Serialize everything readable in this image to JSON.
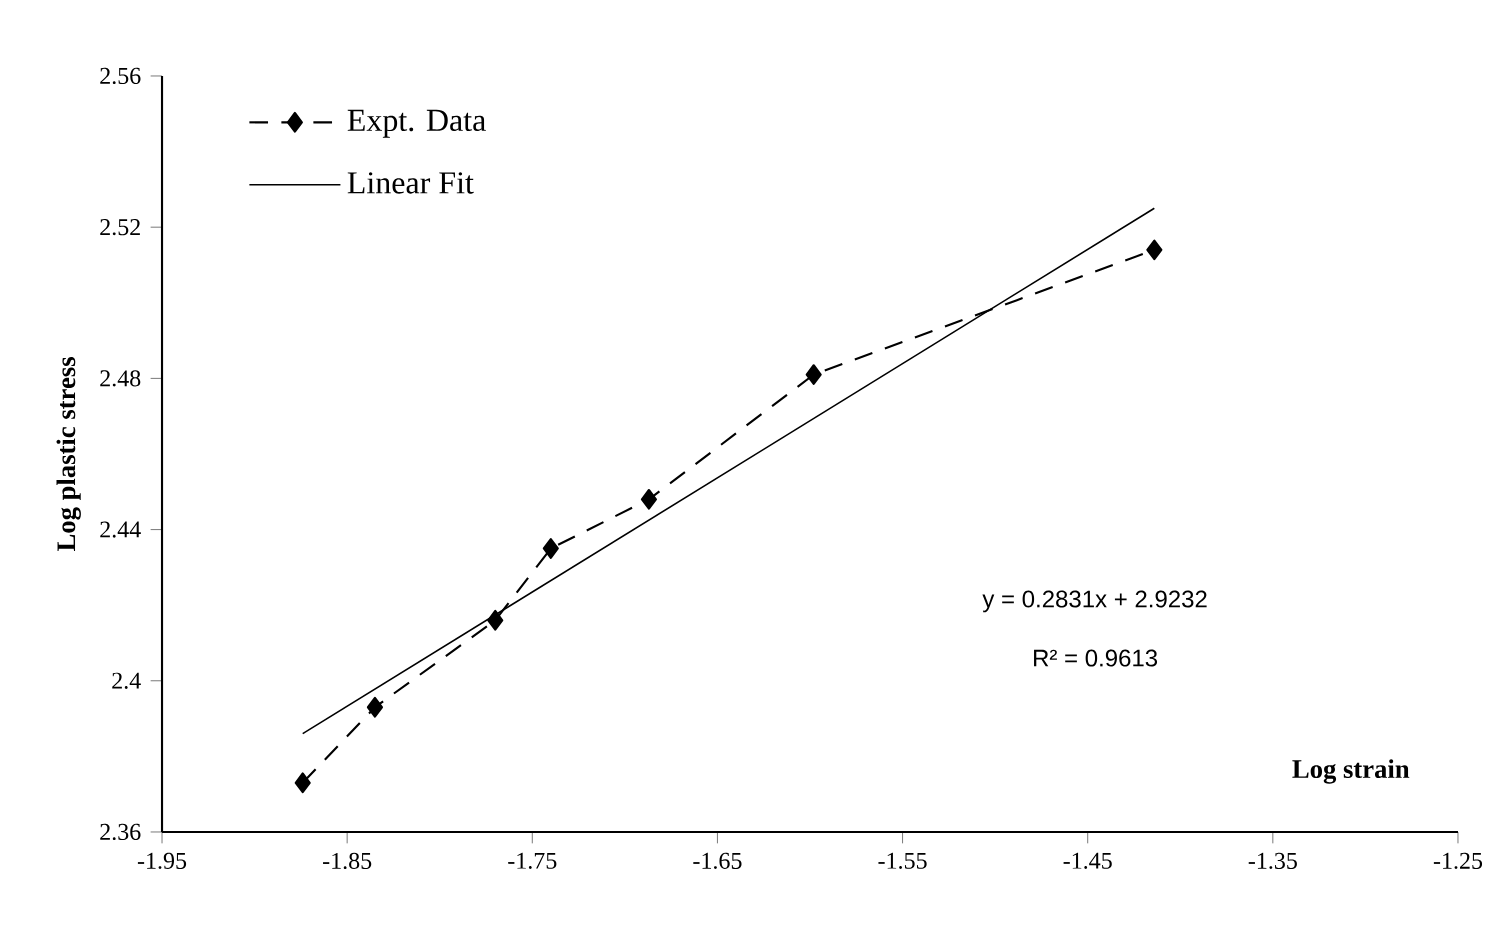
{
  "chart_data": {
    "type": "line",
    "xlabel": "Log strain",
    "ylabel": "Log plastic stress",
    "xlim": [
      -1.95,
      -1.25
    ],
    "xticks": [
      -1.95,
      -1.85,
      -1.75,
      -1.65,
      -1.55,
      -1.45,
      -1.35,
      -1.25
    ],
    "ylim": [
      2.36,
      2.56
    ],
    "yticks": [
      2.36,
      2.4,
      2.44,
      2.48,
      2.52,
      2.56
    ],
    "grid": false,
    "legend": "top left",
    "annotations": [
      "y = 0.2831x + 2.9232",
      "R² = 0.9613"
    ],
    "series": [
      {
        "name": "Expt. Data",
        "type": "line",
        "color": "#000000",
        "marker": "diamond",
        "line_style": "dashed",
        "x": [
          -1.874,
          -1.835,
          -1.77,
          -1.74,
          -1.687,
          -1.598,
          -1.414
        ],
        "values": [
          2.373,
          2.393,
          2.416,
          2.435,
          2.448,
          2.481,
          2.514
        ]
      },
      {
        "name": "Linear Fit",
        "type": "line",
        "color": "#000000",
        "marker": "none",
        "line_style": "solid",
        "x": [
          -1.874,
          -1.414
        ],
        "values": [
          2.386,
          2.525
        ]
      }
    ]
  }
}
